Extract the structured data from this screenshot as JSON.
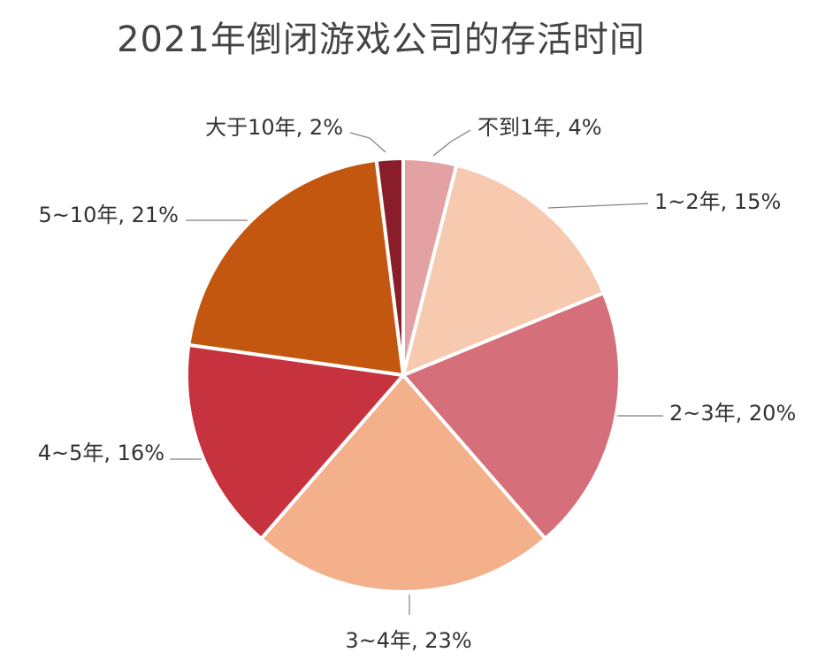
{
  "chart_data": {
    "type": "pie",
    "title": "2021年倒闭游戏公司的存活时间",
    "categories": [
      "不到1年",
      "1~2年",
      "2~3年",
      "3~4年",
      "4~5年",
      "5~10年",
      "大于10年"
    ],
    "values": [
      4,
      15,
      20,
      23,
      16,
      21,
      2
    ],
    "value_unit": "%",
    "data_labels": [
      "不到1年, 4%",
      "1~2年, 15%",
      "2~3年, 20%",
      "3~4年, 23%",
      "4~5年, 16%",
      "5~10年, 21%",
      "大于10年, 2%"
    ],
    "colors": [
      "#E3A1A3",
      "#F7C9AE",
      "#D5707B",
      "#F3B08A",
      "#C7323F",
      "#C4570F",
      "#8A1F2B"
    ],
    "start_angle": "12 o'clock",
    "direction": "clockwise",
    "legend": "none"
  }
}
